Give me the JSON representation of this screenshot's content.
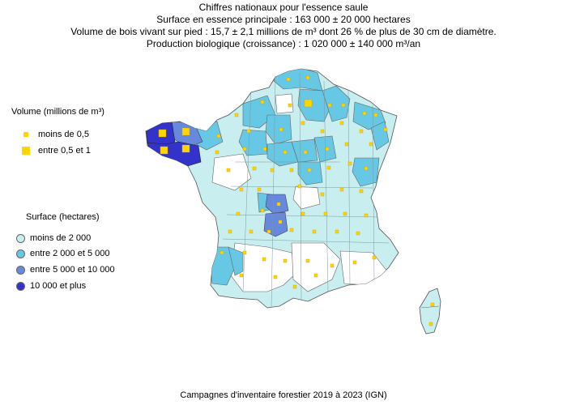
{
  "header": {
    "title": "Chiffres nationaux pour l'essence saule",
    "line1": "Surface en essence principale : 163 000 ± 20 000 hectares",
    "line2": "Volume de bois vivant sur pied : 15,7 ± 2,1 millions de m³ dont 26 % de plus de 30 cm de diamètre.",
    "line3": "Production biologique (croissance) : 1 020 000 ± 140 000 m³/an"
  },
  "legend_volume": {
    "title": "Volume (millions de m³)",
    "items": [
      {
        "label": "moins de 0,5",
        "color": "#FFD400"
      },
      {
        "label": "entre 0,5 et 1",
        "color": "#FFD400"
      }
    ]
  },
  "legend_surface": {
    "title": "Surface (hectares)",
    "items": [
      {
        "label": "moins de 2 000",
        "color": "#C8EEF0"
      },
      {
        "label": "entre 2 000 et 5 000",
        "color": "#66C8E4"
      },
      {
        "label": "entre 5 000 et 10 000",
        "color": "#6688DD"
      },
      {
        "label": "10 000 et plus",
        "color": "#3333CC"
      }
    ]
  },
  "footer": "Campagnes d'inventaire forestier 2019 à 2023 (IGN)"
}
